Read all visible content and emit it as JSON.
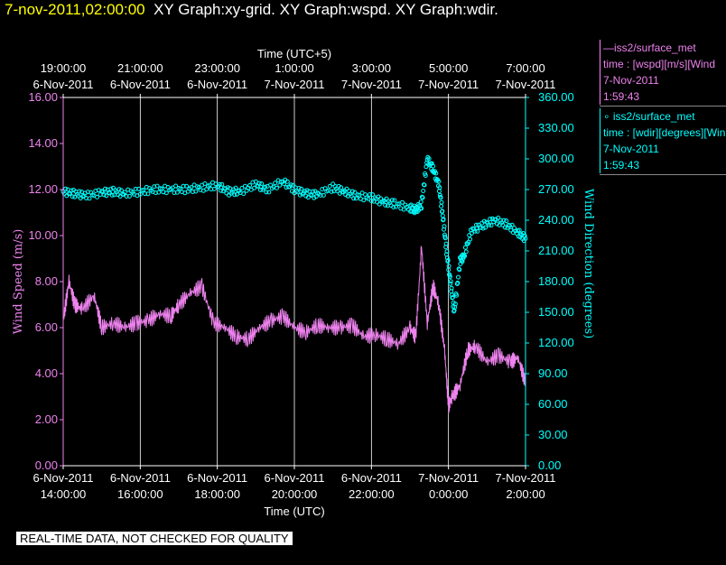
{
  "header": {
    "time": "7-nov-2011,02:00:00",
    "graphs": "XY Graph:xy-grid.  XY Graph:wspd.  XY Graph:wdir."
  },
  "legend": {
    "wspd": {
      "line1": "—iss2/surface_met",
      "line2": "time : [wspd][m/s][Wind",
      "line3": "7-Nov-2011",
      "line4": "1:59:43"
    },
    "wdir": {
      "line1": "iss2/surface_met",
      "line2": "time : [wdir][degrees][Win",
      "line3": "7-Nov-2011",
      "line4": "1:59:43"
    }
  },
  "disclaimer": "REAL-TIME DATA, NOT CHECKED FOR QUALITY",
  "colors": {
    "wspd": "#ee82ee",
    "wdir": "#00ffff",
    "left_axis": "#ee82ee",
    "right_axis": "#00ffff",
    "grid": "#ffffff"
  },
  "chart_data": {
    "type": "line",
    "top_axis_title": "Time (UTC+5)",
    "bottom_axis_title": "Time (UTC)",
    "left_axis_label": "Wind Speed (m/s)",
    "right_axis_label": "Wind Direction (degrees)",
    "x_range_utc_hours": [
      14.0,
      26.0
    ],
    "bottom_ticks": [
      {
        "h": 14,
        "date": "6-Nov-2011",
        "time": "14:00:00"
      },
      {
        "h": 16,
        "date": "6-Nov-2011",
        "time": "16:00:00"
      },
      {
        "h": 18,
        "date": "6-Nov-2011",
        "time": "18:00:00"
      },
      {
        "h": 20,
        "date": "6-Nov-2011",
        "time": "20:00:00"
      },
      {
        "h": 22,
        "date": "6-Nov-2011",
        "time": "22:00:00"
      },
      {
        "h": 24,
        "date": "7-Nov-2011",
        "time": "0:00:00"
      },
      {
        "h": 26,
        "date": "7-Nov-2011",
        "time": "2:00:00"
      }
    ],
    "top_ticks": [
      {
        "h": 14,
        "time": "19:00:00",
        "date": "6-Nov-2011"
      },
      {
        "h": 16,
        "time": "21:00:00",
        "date": "6-Nov-2011"
      },
      {
        "h": 18,
        "time": "23:00:00",
        "date": "6-Nov-2011"
      },
      {
        "h": 20,
        "time": "1:00:00",
        "date": "7-Nov-2011"
      },
      {
        "h": 22,
        "time": "3:00:00",
        "date": "7-Nov-2011"
      },
      {
        "h": 24,
        "time": "5:00:00",
        "date": "7-Nov-2011"
      },
      {
        "h": 26,
        "time": "7:00:00",
        "date": "7-Nov-2011"
      }
    ],
    "left_ticks": [
      "0.00",
      "2.00",
      "4.00",
      "6.00",
      "8.00",
      "10.00",
      "12.00",
      "14.00",
      "16.00"
    ],
    "left_range": [
      0,
      16
    ],
    "right_ticks": [
      "0.00",
      "30.00",
      "60.00",
      "90.00",
      "120.00",
      "150.00",
      "180.00",
      "210.00",
      "240.00",
      "270.00",
      "300.00",
      "330.00",
      "360.00"
    ],
    "right_range": [
      0,
      360
    ],
    "series": [
      {
        "name": "iss2/surface_met time : [wspd][m/s]",
        "axis": "left",
        "style": "line",
        "x": [
          14.0,
          14.15,
          14.3,
          14.5,
          14.8,
          15.0,
          15.3,
          15.6,
          15.9,
          16.2,
          16.5,
          16.8,
          17.0,
          17.3,
          17.6,
          17.9,
          18.2,
          18.5,
          18.8,
          19.1,
          19.4,
          19.7,
          20.0,
          20.3,
          20.6,
          20.9,
          21.2,
          21.5,
          21.8,
          22.1,
          22.4,
          22.7,
          23.0,
          23.15,
          23.3,
          23.45,
          23.6,
          23.75,
          23.9,
          24.0,
          24.1,
          24.3,
          24.5,
          24.7,
          25.0,
          25.3,
          25.6,
          25.8,
          26.0
        ],
        "y": [
          6.3,
          8.0,
          7.0,
          6.8,
          7.4,
          6.0,
          6.2,
          6.0,
          6.2,
          6.3,
          6.6,
          6.5,
          7.0,
          7.5,
          7.8,
          6.2,
          6.0,
          5.6,
          5.5,
          6.0,
          6.3,
          6.5,
          6.0,
          5.8,
          6.1,
          6.0,
          6.0,
          6.1,
          5.6,
          5.7,
          5.5,
          5.3,
          6.0,
          5.6,
          9.5,
          6.2,
          7.8,
          7.0,
          5.0,
          2.6,
          3.0,
          3.5,
          5.0,
          5.2,
          4.5,
          4.8,
          4.5,
          4.7,
          3.6
        ]
      },
      {
        "name": "iss2/surface_met time : [wdir][degrees]",
        "axis": "right",
        "style": "circles",
        "x": [
          14.0,
          14.3,
          14.6,
          15.0,
          15.3,
          15.6,
          16.0,
          16.4,
          16.8,
          17.2,
          17.6,
          18.0,
          18.3,
          18.6,
          19.0,
          19.3,
          19.7,
          20.0,
          20.3,
          20.6,
          21.0,
          21.3,
          21.6,
          22.0,
          22.3,
          22.6,
          23.0,
          23.15,
          23.3,
          23.45,
          23.6,
          23.75,
          23.85,
          23.95,
          24.05,
          24.15,
          24.3,
          24.4,
          24.6,
          24.9,
          25.2,
          25.5,
          25.8,
          26.0
        ],
        "y": [
          268,
          266,
          264,
          267,
          268,
          266,
          268,
          270,
          270,
          270,
          272,
          274,
          268,
          268,
          275,
          270,
          278,
          270,
          266,
          265,
          272,
          268,
          264,
          262,
          258,
          256,
          252,
          250,
          255,
          300,
          290,
          275,
          245,
          210,
          180,
          150,
          200,
          205,
          230,
          235,
          240,
          236,
          228,
          222
        ]
      }
    ]
  }
}
